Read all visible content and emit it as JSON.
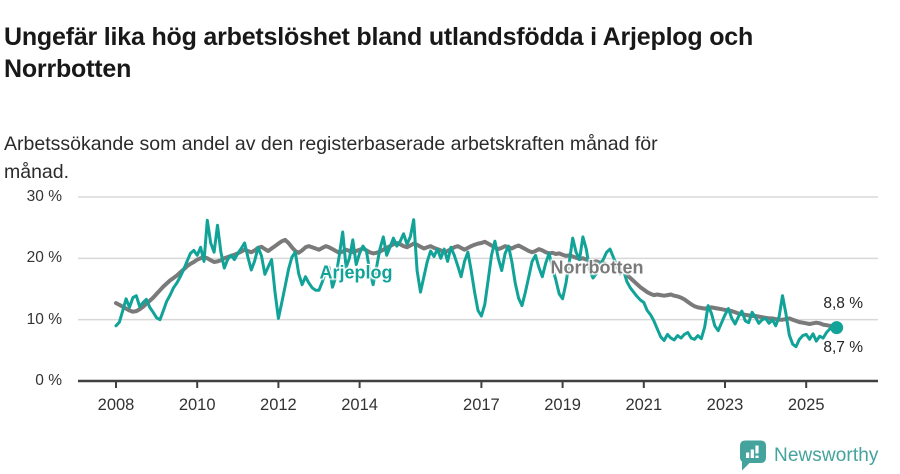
{
  "header": {
    "title": "Ungefär lika hög arbetslöshet bland utlandsfödda i Arjeplog och Norrbotten",
    "subtitle": "Arbetssökande som andel av den registerbaserade arbetskraften månad för månad."
  },
  "footer": {
    "brand": "Newsworthy",
    "logo_icon": "bar-chart-speech-bubble-icon",
    "brand_color": "#44a39c"
  },
  "colors": {
    "arjeplog_line": "#11a398",
    "norrbotten_line": "#7a7a7a",
    "gridline": "#d8d8d8",
    "axis": "#404040",
    "tick_text": "#333333",
    "title_text": "#181818"
  },
  "chart_data": {
    "type": "line",
    "title": "Ungefär lika hög arbetslöshet bland utlandsfödda i Arjeplog och Norrbotten",
    "ylabel": "Arbetssökande som andel av den registerbaserade arbetskraften",
    "x_unit": "month",
    "x_start": 2008.0,
    "x_step": 0.083333,
    "x_tick_years": [
      "2008",
      "2010",
      "2012",
      "2014",
      "2017",
      "2019",
      "2021",
      "2023",
      "2025"
    ],
    "y_ticks": [
      {
        "value": 0,
        "label": "0 %"
      },
      {
        "value": 10,
        "label": "10 %"
      },
      {
        "value": 20,
        "label": "20 %"
      },
      {
        "value": 30,
        "label": "30 %"
      }
    ],
    "ylim": [
      0,
      32
    ],
    "grid": "horizontal",
    "legend": "inline-labels",
    "series": [
      {
        "name": "Norrbotten",
        "color": "#7a7a7a",
        "last_value_label": "8,8 %",
        "end_dot": false,
        "values": [
          12.7,
          12.4,
          12.1,
          11.8,
          11.5,
          11.3,
          11.4,
          11.7,
          12.1,
          12.6,
          13.1,
          13.6,
          14.2,
          14.8,
          15.4,
          15.9,
          16.4,
          16.8,
          17.2,
          17.7,
          18.2,
          18.7,
          19.1,
          19.4,
          19.8,
          20.0,
          20.2,
          20.0,
          19.7,
          19.4,
          19.5,
          19.7,
          20.0,
          20.2,
          20.4,
          20.6,
          20.8,
          21.1,
          21.4,
          21.2,
          21.0,
          21.3,
          21.7,
          21.9,
          21.5,
          21.2,
          21.6,
          22.0,
          22.4,
          22.8,
          23.0,
          22.5,
          21.8,
          21.2,
          20.9,
          21.3,
          21.8,
          22.0,
          21.8,
          21.6,
          21.4,
          21.7,
          22.0,
          21.8,
          21.5,
          21.2,
          20.9,
          21.1,
          21.4,
          21.2,
          21.0,
          21.2,
          21.4,
          21.6,
          21.3,
          21.0,
          20.8,
          20.9,
          21.1,
          21.4,
          21.7,
          22.0,
          22.3,
          22.5,
          22.3,
          22.0,
          21.8,
          22.1,
          22.4,
          22.2,
          21.9,
          21.6,
          21.8,
          22.0,
          21.7,
          21.5,
          21.3,
          21.0,
          21.2,
          21.5,
          21.8,
          22.0,
          21.7,
          21.4,
          21.7,
          22.0,
          22.2,
          22.4,
          22.5,
          22.7,
          22.4,
          22.1,
          21.8,
          21.5,
          21.7,
          22.0,
          21.8,
          21.6,
          21.9,
          22.1,
          21.8,
          21.5,
          21.2,
          21.0,
          21.2,
          21.5,
          21.3,
          21.0,
          20.8,
          20.9,
          20.7,
          20.8,
          20.6,
          20.4,
          20.5,
          20.3,
          20.1,
          19.9,
          20.0,
          19.8,
          19.6,
          19.4,
          19.5,
          19.3,
          19.2,
          19.0,
          18.8,
          18.9,
          18.6,
          18.2,
          17.8,
          17.3,
          16.8,
          16.3,
          15.8,
          15.3,
          14.9,
          14.5,
          14.2,
          14.0,
          14.1,
          14.0,
          13.9,
          14.0,
          14.1,
          13.9,
          13.8,
          13.6,
          13.3,
          12.9,
          12.5,
          12.2,
          12.0,
          11.9,
          11.8,
          11.9,
          12.0,
          11.9,
          11.8,
          11.7,
          11.6,
          11.5,
          11.4,
          11.2,
          11.0,
          10.9,
          10.8,
          10.7,
          10.6,
          10.6,
          10.5,
          10.4,
          10.3,
          10.2,
          10.2,
          10.1,
          10.0,
          10.0,
          10.1,
          10.2,
          10.0,
          9.8,
          9.6,
          9.5,
          9.4,
          9.3,
          9.4,
          9.5,
          9.4,
          9.2,
          9.1,
          9.0,
          8.9,
          8.8
        ]
      },
      {
        "name": "Arjeplog",
        "color": "#11a398",
        "last_value_label": "8,7 %",
        "end_dot": true,
        "values": [
          9.0,
          9.6,
          11.5,
          13.4,
          12.0,
          13.6,
          13.9,
          12.1,
          12.8,
          13.3,
          12.0,
          11.2,
          10.3,
          10.0,
          11.5,
          13.0,
          14.0,
          15.2,
          16.0,
          17.0,
          18.2,
          19.5,
          20.8,
          21.3,
          20.5,
          21.8,
          19.5,
          26.2,
          22.5,
          21.0,
          25.4,
          21.0,
          18.4,
          19.8,
          20.5,
          19.8,
          20.8,
          21.6,
          22.5,
          20.2,
          18.1,
          19.6,
          21.8,
          20.4,
          17.4,
          18.6,
          19.8,
          14.5,
          10.2,
          12.8,
          15.5,
          18.2,
          20.2,
          21.0,
          17.5,
          15.7,
          17.0,
          16.0,
          15.2,
          14.8,
          14.8,
          16.2,
          17.8,
          18.5,
          15.3,
          17.0,
          20.5,
          24.3,
          18.5,
          20.0,
          23.0,
          19.0,
          20.8,
          22.0,
          21.2,
          18.0,
          15.7,
          18.5,
          21.5,
          23.5,
          20.5,
          21.8,
          23.3,
          22.0,
          22.8,
          24.0,
          22.3,
          23.5,
          26.3,
          18.0,
          14.5,
          17.0,
          19.5,
          21.2,
          20.3,
          21.5,
          20.0,
          21.5,
          19.5,
          21.8,
          20.5,
          18.8,
          17.0,
          19.5,
          21.0,
          18.0,
          14.5,
          11.5,
          10.6,
          12.5,
          16.5,
          20.5,
          22.8,
          20.0,
          18.0,
          20.8,
          22.0,
          19.5,
          16.0,
          13.5,
          12.3,
          14.5,
          17.0,
          19.5,
          20.5,
          18.5,
          17.0,
          19.2,
          20.8,
          18.5,
          16.5,
          14.2,
          13.4,
          16.0,
          19.5,
          23.3,
          21.0,
          19.8,
          23.5,
          21.5,
          18.0,
          16.8,
          17.5,
          19.0,
          19.8,
          21.0,
          21.5,
          20.2,
          18.8,
          17.5,
          18.0,
          16.2,
          15.2,
          14.5,
          13.8,
          13.2,
          12.8,
          11.5,
          10.8,
          9.8,
          8.5,
          7.2,
          6.6,
          7.6,
          7.0,
          6.7,
          7.4,
          7.0,
          7.6,
          7.9,
          7.0,
          6.8,
          7.4,
          6.9,
          8.8,
          12.3,
          11.0,
          9.0,
          8.2,
          9.5,
          10.8,
          11.8,
          10.2,
          9.3,
          10.5,
          11.4,
          9.8,
          9.5,
          11.2,
          10.4,
          9.4,
          10.0,
          10.2,
          9.4,
          10.0,
          9.0,
          10.5,
          13.9,
          11.0,
          7.5,
          6.0,
          5.6,
          6.8,
          7.4,
          7.6,
          6.8,
          7.7,
          6.5,
          7.3,
          7.0,
          7.9,
          8.5,
          9.0,
          8.7
        ]
      }
    ]
  }
}
